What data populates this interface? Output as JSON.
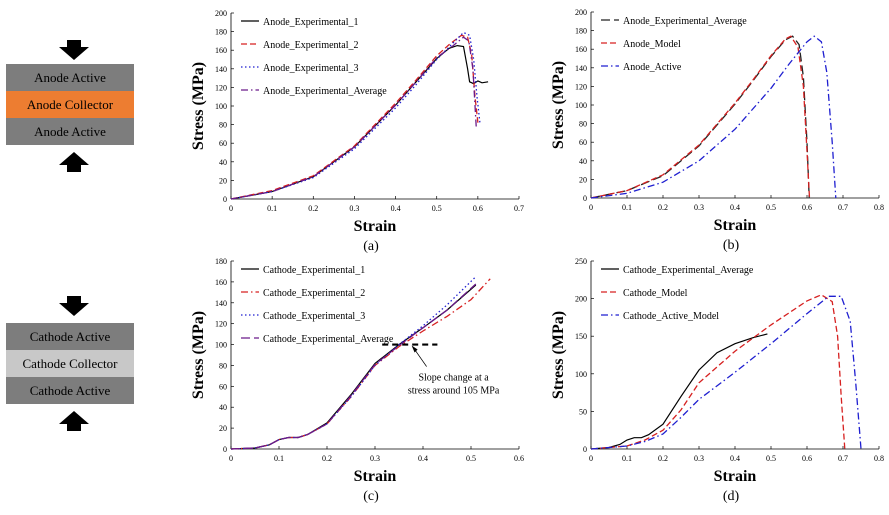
{
  "anode_stack": {
    "layers": [
      {
        "label": "Anode Active",
        "color": "#7d7d7d"
      },
      {
        "label": "Anode Collector",
        "color": "#ed7d31"
      },
      {
        "label": "Anode Active",
        "color": "#7d7d7d"
      }
    ]
  },
  "cathode_stack": {
    "layers": [
      {
        "label": "Cathode Active",
        "color": "#7d7d7d"
      },
      {
        "label": "Cathode Collector",
        "color": "#c8c8c8"
      },
      {
        "label": "Cathode Active",
        "color": "#7d7d7d"
      }
    ]
  },
  "chart_data": [
    {
      "id": "a",
      "type": "line",
      "panel_label": "(a)",
      "xlabel": "Strain",
      "ylabel": "Stress (MPa)",
      "xlim": [
        0,
        0.7
      ],
      "ylim": [
        0,
        200
      ],
      "xticks": [
        "0",
        "0.1",
        "0.2",
        "0.3",
        "0.4",
        "0.5",
        "0.6",
        "0.7"
      ],
      "yticks": [
        "0",
        "20",
        "40",
        "60",
        "80",
        "100",
        "120",
        "140",
        "160",
        "180",
        "200"
      ],
      "grid": false,
      "legend": "top-left",
      "series": [
        {
          "name": "Anode_Experimental_1",
          "color": "#000000",
          "dash": "solid",
          "x": [
            0,
            0.1,
            0.2,
            0.3,
            0.4,
            0.45,
            0.5,
            0.53,
            0.55,
            0.565,
            0.575,
            0.58,
            0.59,
            0.6,
            0.61,
            0.625
          ],
          "y": [
            0,
            8,
            24,
            56,
            101,
            126,
            151,
            162,
            165,
            164,
            140,
            126,
            124,
            127,
            125,
            126
          ]
        },
        {
          "name": "Anode_Experimental_2",
          "color": "#d62020",
          "dash": "dashed",
          "x": [
            0,
            0.1,
            0.2,
            0.3,
            0.4,
            0.45,
            0.5,
            0.53,
            0.56,
            0.575,
            0.585,
            0.593,
            0.6
          ],
          "y": [
            0,
            9,
            25,
            57,
            103,
            128,
            154,
            166,
            176,
            174,
            155,
            110,
            82
          ]
        },
        {
          "name": "Anode_Experimental_3",
          "color": "#1f1fd0",
          "dash": "dotted",
          "x": [
            0,
            0.1,
            0.2,
            0.3,
            0.4,
            0.45,
            0.5,
            0.54,
            0.565,
            0.58,
            0.59,
            0.598,
            0.605
          ],
          "y": [
            0,
            8,
            23,
            54,
            98,
            123,
            150,
            168,
            179,
            176,
            150,
            110,
            82
          ]
        },
        {
          "name": "Anode_Experimental_Average",
          "color": "#6a1a8a",
          "dash": "dashdot",
          "x": [
            0,
            0.1,
            0.2,
            0.3,
            0.4,
            0.45,
            0.5,
            0.54,
            0.565,
            0.578,
            0.588,
            0.596
          ],
          "y": [
            0,
            8,
            24,
            56,
            101,
            126,
            152,
            165,
            174,
            170,
            140,
            78
          ]
        }
      ]
    },
    {
      "id": "b",
      "type": "line",
      "panel_label": "(b)",
      "xlabel": "Strain",
      "ylabel": "Stress (MPa)",
      "xlim": [
        0,
        0.8
      ],
      "ylim": [
        0,
        200
      ],
      "xticks": [
        "0",
        "0.1",
        "0.2",
        "0.3",
        "0.4",
        "0.5",
        "0.6",
        "0.7",
        "0.8"
      ],
      "yticks": [
        "0",
        "20",
        "40",
        "60",
        "80",
        "100",
        "120",
        "140",
        "160",
        "180",
        "200"
      ],
      "grid": false,
      "legend": "top-left",
      "series": [
        {
          "name": "Anode_Experimental_Average",
          "color": "#222222",
          "dash": "longdash",
          "x": [
            0,
            0.1,
            0.2,
            0.3,
            0.4,
            0.45,
            0.5,
            0.54,
            0.56,
            0.578,
            0.59,
            0.6,
            0.606
          ],
          "y": [
            0,
            8,
            24,
            56,
            101,
            126,
            152,
            170,
            174,
            165,
            130,
            60,
            0
          ]
        },
        {
          "name": "Anode_Model",
          "color": "#d62020",
          "dash": "dashed",
          "x": [
            0,
            0.1,
            0.2,
            0.3,
            0.4,
            0.45,
            0.5,
            0.54,
            0.555,
            0.575,
            0.59,
            0.6,
            0.607
          ],
          "y": [
            0,
            8,
            25,
            57,
            102,
            127,
            153,
            171,
            174,
            162,
            120,
            50,
            0
          ]
        },
        {
          "name": "Anode_Active",
          "color": "#1f1fd0",
          "dash": "dashdot",
          "x": [
            0,
            0.1,
            0.2,
            0.3,
            0.4,
            0.5,
            0.55,
            0.6,
            0.62,
            0.64,
            0.655,
            0.67,
            0.68
          ],
          "y": [
            0,
            5,
            17,
            40,
            74,
            118,
            144,
            168,
            174,
            168,
            135,
            60,
            0
          ]
        }
      ]
    },
    {
      "id": "c",
      "type": "line",
      "panel_label": "(c)",
      "xlabel": "Strain",
      "ylabel": "Stress (MPa)",
      "xlim": [
        0,
        0.6
      ],
      "ylim": [
        0,
        180
      ],
      "xticks": [
        "0",
        "0.1",
        "0.2",
        "0.3",
        "0.4",
        "0.5",
        "0.6"
      ],
      "yticks": [
        "0",
        "20",
        "40",
        "60",
        "80",
        "100",
        "120",
        "140",
        "160",
        "180"
      ],
      "grid": false,
      "legend": "top-left",
      "annotation": {
        "lines": [
          "Slope change at a",
          "stress around 105 MPa"
        ],
        "x": 0.37,
        "y": 100
      },
      "series": [
        {
          "name": "Cathode_Experimental_1",
          "color": "#000000",
          "dash": "solid",
          "x": [
            0,
            0.05,
            0.08,
            0.1,
            0.12,
            0.14,
            0.16,
            0.2,
            0.25,
            0.3,
            0.35,
            0.4,
            0.45,
            0.51
          ],
          "y": [
            0,
            1,
            4,
            9,
            11,
            11,
            14,
            25,
            52,
            82,
            100,
            116,
            133,
            157
          ]
        },
        {
          "name": "Cathode_Experimental_2",
          "color": "#d62020",
          "dash": "dashdot",
          "x": [
            0,
            0.05,
            0.08,
            0.1,
            0.12,
            0.14,
            0.16,
            0.2,
            0.25,
            0.3,
            0.35,
            0.4,
            0.45,
            0.5,
            0.54
          ],
          "y": [
            0,
            1,
            4,
            9,
            11,
            11,
            14,
            24,
            50,
            80,
            98,
            113,
            127,
            143,
            163
          ]
        },
        {
          "name": "Cathode_Experimental_3",
          "color": "#1f1fd0",
          "dash": "dotted",
          "x": [
            0,
            0.05,
            0.08,
            0.1,
            0.12,
            0.14,
            0.16,
            0.2,
            0.25,
            0.3,
            0.35,
            0.4,
            0.45,
            0.51
          ],
          "y": [
            0,
            1,
            4,
            9,
            11,
            11,
            14,
            24,
            50,
            80,
            100,
            118,
            138,
            165
          ]
        },
        {
          "name": "Cathode_Experimental_Average",
          "color": "#6a1a8a",
          "dash": "longdash",
          "x": [
            0,
            0.05,
            0.08,
            0.1,
            0.12,
            0.14,
            0.16,
            0.2,
            0.25,
            0.3,
            0.35,
            0.4,
            0.45,
            0.51
          ],
          "y": [
            0,
            1,
            4,
            9,
            11,
            11,
            14,
            24,
            51,
            81,
            99,
            116,
            133,
            158
          ]
        }
      ]
    },
    {
      "id": "d",
      "type": "line",
      "panel_label": "(d)",
      "xlabel": "Strain",
      "ylabel": "Stress (MPa)",
      "xlim": [
        0,
        0.8
      ],
      "ylim": [
        0,
        250
      ],
      "xticks": [
        "0",
        "0.1",
        "0.2",
        "0.3",
        "0.4",
        "0.5",
        "0.6",
        "0.7",
        "0.8"
      ],
      "yticks": [
        "0",
        "50",
        "100",
        "150",
        "200",
        "250"
      ],
      "grid": false,
      "legend": "top-left",
      "series": [
        {
          "name": "Cathode_Experimental_Average",
          "color": "#000000",
          "dash": "solid",
          "x": [
            0,
            0.05,
            0.08,
            0.1,
            0.12,
            0.14,
            0.16,
            0.2,
            0.25,
            0.3,
            0.35,
            0.4,
            0.45,
            0.49
          ],
          "y": [
            0,
            2,
            6,
            12,
            15,
            15,
            19,
            33,
            70,
            105,
            128,
            140,
            148,
            153
          ]
        },
        {
          "name": "Cathode_Model",
          "color": "#d62020",
          "dash": "dashed",
          "x": [
            0,
            0.1,
            0.15,
            0.2,
            0.25,
            0.3,
            0.4,
            0.5,
            0.6,
            0.64,
            0.67,
            0.685,
            0.695,
            0.705
          ],
          "y": [
            0,
            4,
            12,
            25,
            52,
            88,
            130,
            165,
            197,
            205,
            196,
            150,
            70,
            0
          ]
        },
        {
          "name": "Cathode_Active_Model",
          "color": "#1f1fd0",
          "dash": "dashdot",
          "x": [
            0,
            0.1,
            0.15,
            0.2,
            0.25,
            0.3,
            0.4,
            0.5,
            0.6,
            0.66,
            0.695,
            0.72,
            0.735,
            0.75
          ],
          "y": [
            0,
            4,
            10,
            20,
            42,
            66,
            102,
            140,
            180,
            203,
            203,
            170,
            90,
            0
          ]
        }
      ]
    }
  ]
}
